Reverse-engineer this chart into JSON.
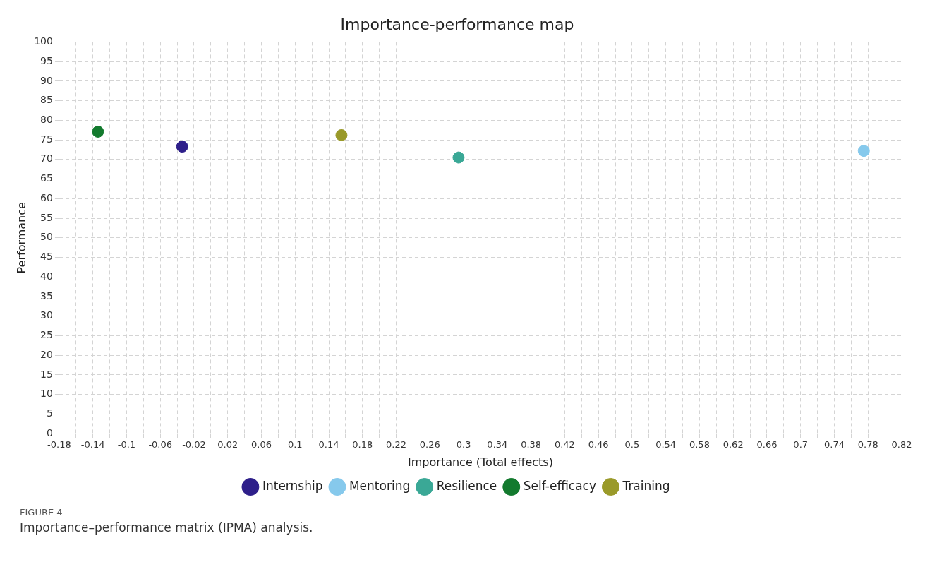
{
  "chart_data": {
    "type": "scatter",
    "title": "Importance-performance map",
    "xlabel": "Importance (Total effects)",
    "ylabel": "Performance",
    "series": [
      {
        "name": "Internship",
        "color": "#2e1f8a",
        "x": [
          -0.034
        ],
        "values": [
          73.3
        ]
      },
      {
        "name": "Mentoring",
        "color": "#86c9ec",
        "x": [
          0.775
        ],
        "values": [
          72.2
        ]
      },
      {
        "name": "Resilience",
        "color": "#3aa896",
        "x": [
          0.294
        ],
        "values": [
          70.5
        ]
      },
      {
        "name": "Self-efficacy",
        "color": "#137a2e",
        "x": [
          -0.134
        ],
        "values": [
          77.1
        ]
      },
      {
        "name": "Training",
        "color": "#9a9a2a",
        "x": [
          0.155
        ],
        "values": [
          76.2
        ]
      }
    ],
    "xlim": [
      -0.18,
      0.82
    ],
    "xticks": [
      -0.18,
      {
        "value": -0.16,
        "label": null
      },
      -0.14,
      {
        "value": -0.12,
        "label": null
      },
      -0.1,
      {
        "value": -0.08,
        "label": null
      },
      -0.06,
      {
        "value": -0.04,
        "label": null
      },
      -0.02,
      {
        "value": 0,
        "label": null
      },
      0.02,
      {
        "value": 0.04,
        "label": null
      },
      0.06,
      {
        "value": 0.08,
        "label": null
      },
      0.1,
      {
        "value": 0.12,
        "label": null
      },
      0.14,
      {
        "value": 0.16,
        "label": null
      },
      0.18,
      {
        "value": 0.2,
        "label": null
      },
      0.22,
      {
        "value": 0.24,
        "label": null
      },
      0.26,
      {
        "value": 0.28,
        "label": null
      },
      0.3,
      {
        "value": 0.32,
        "label": null
      },
      0.34,
      {
        "value": 0.36,
        "label": null
      },
      0.38,
      {
        "value": 0.4,
        "label": null
      },
      0.42,
      {
        "value": 0.44,
        "label": null
      },
      0.46,
      {
        "value": 0.48,
        "label": null
      },
      0.5,
      {
        "value": 0.52,
        "label": null
      },
      0.54,
      {
        "value": 0.56,
        "label": null
      },
      0.58,
      {
        "value": 0.6,
        "label": null
      },
      0.62,
      {
        "value": 0.64,
        "label": null
      },
      0.66,
      {
        "value": 0.68,
        "label": null
      },
      0.7,
      {
        "value": 0.72,
        "label": null
      },
      0.74,
      {
        "value": 0.76,
        "label": null
      },
      0.78,
      {
        "value": 0.8,
        "label": null
      },
      0.82
    ],
    "ylim": [
      0,
      100
    ],
    "yticks": [
      0,
      5,
      10,
      15,
      20,
      25,
      30,
      35,
      40,
      45,
      50,
      55,
      60,
      65,
      70,
      75,
      80,
      85,
      90,
      95,
      100
    ],
    "grid": true,
    "legend": "bottom",
    "marker": "circle",
    "annotations": [
      "FIGURE 4",
      "Importance–performance matrix (IPMA) analysis."
    ]
  }
}
